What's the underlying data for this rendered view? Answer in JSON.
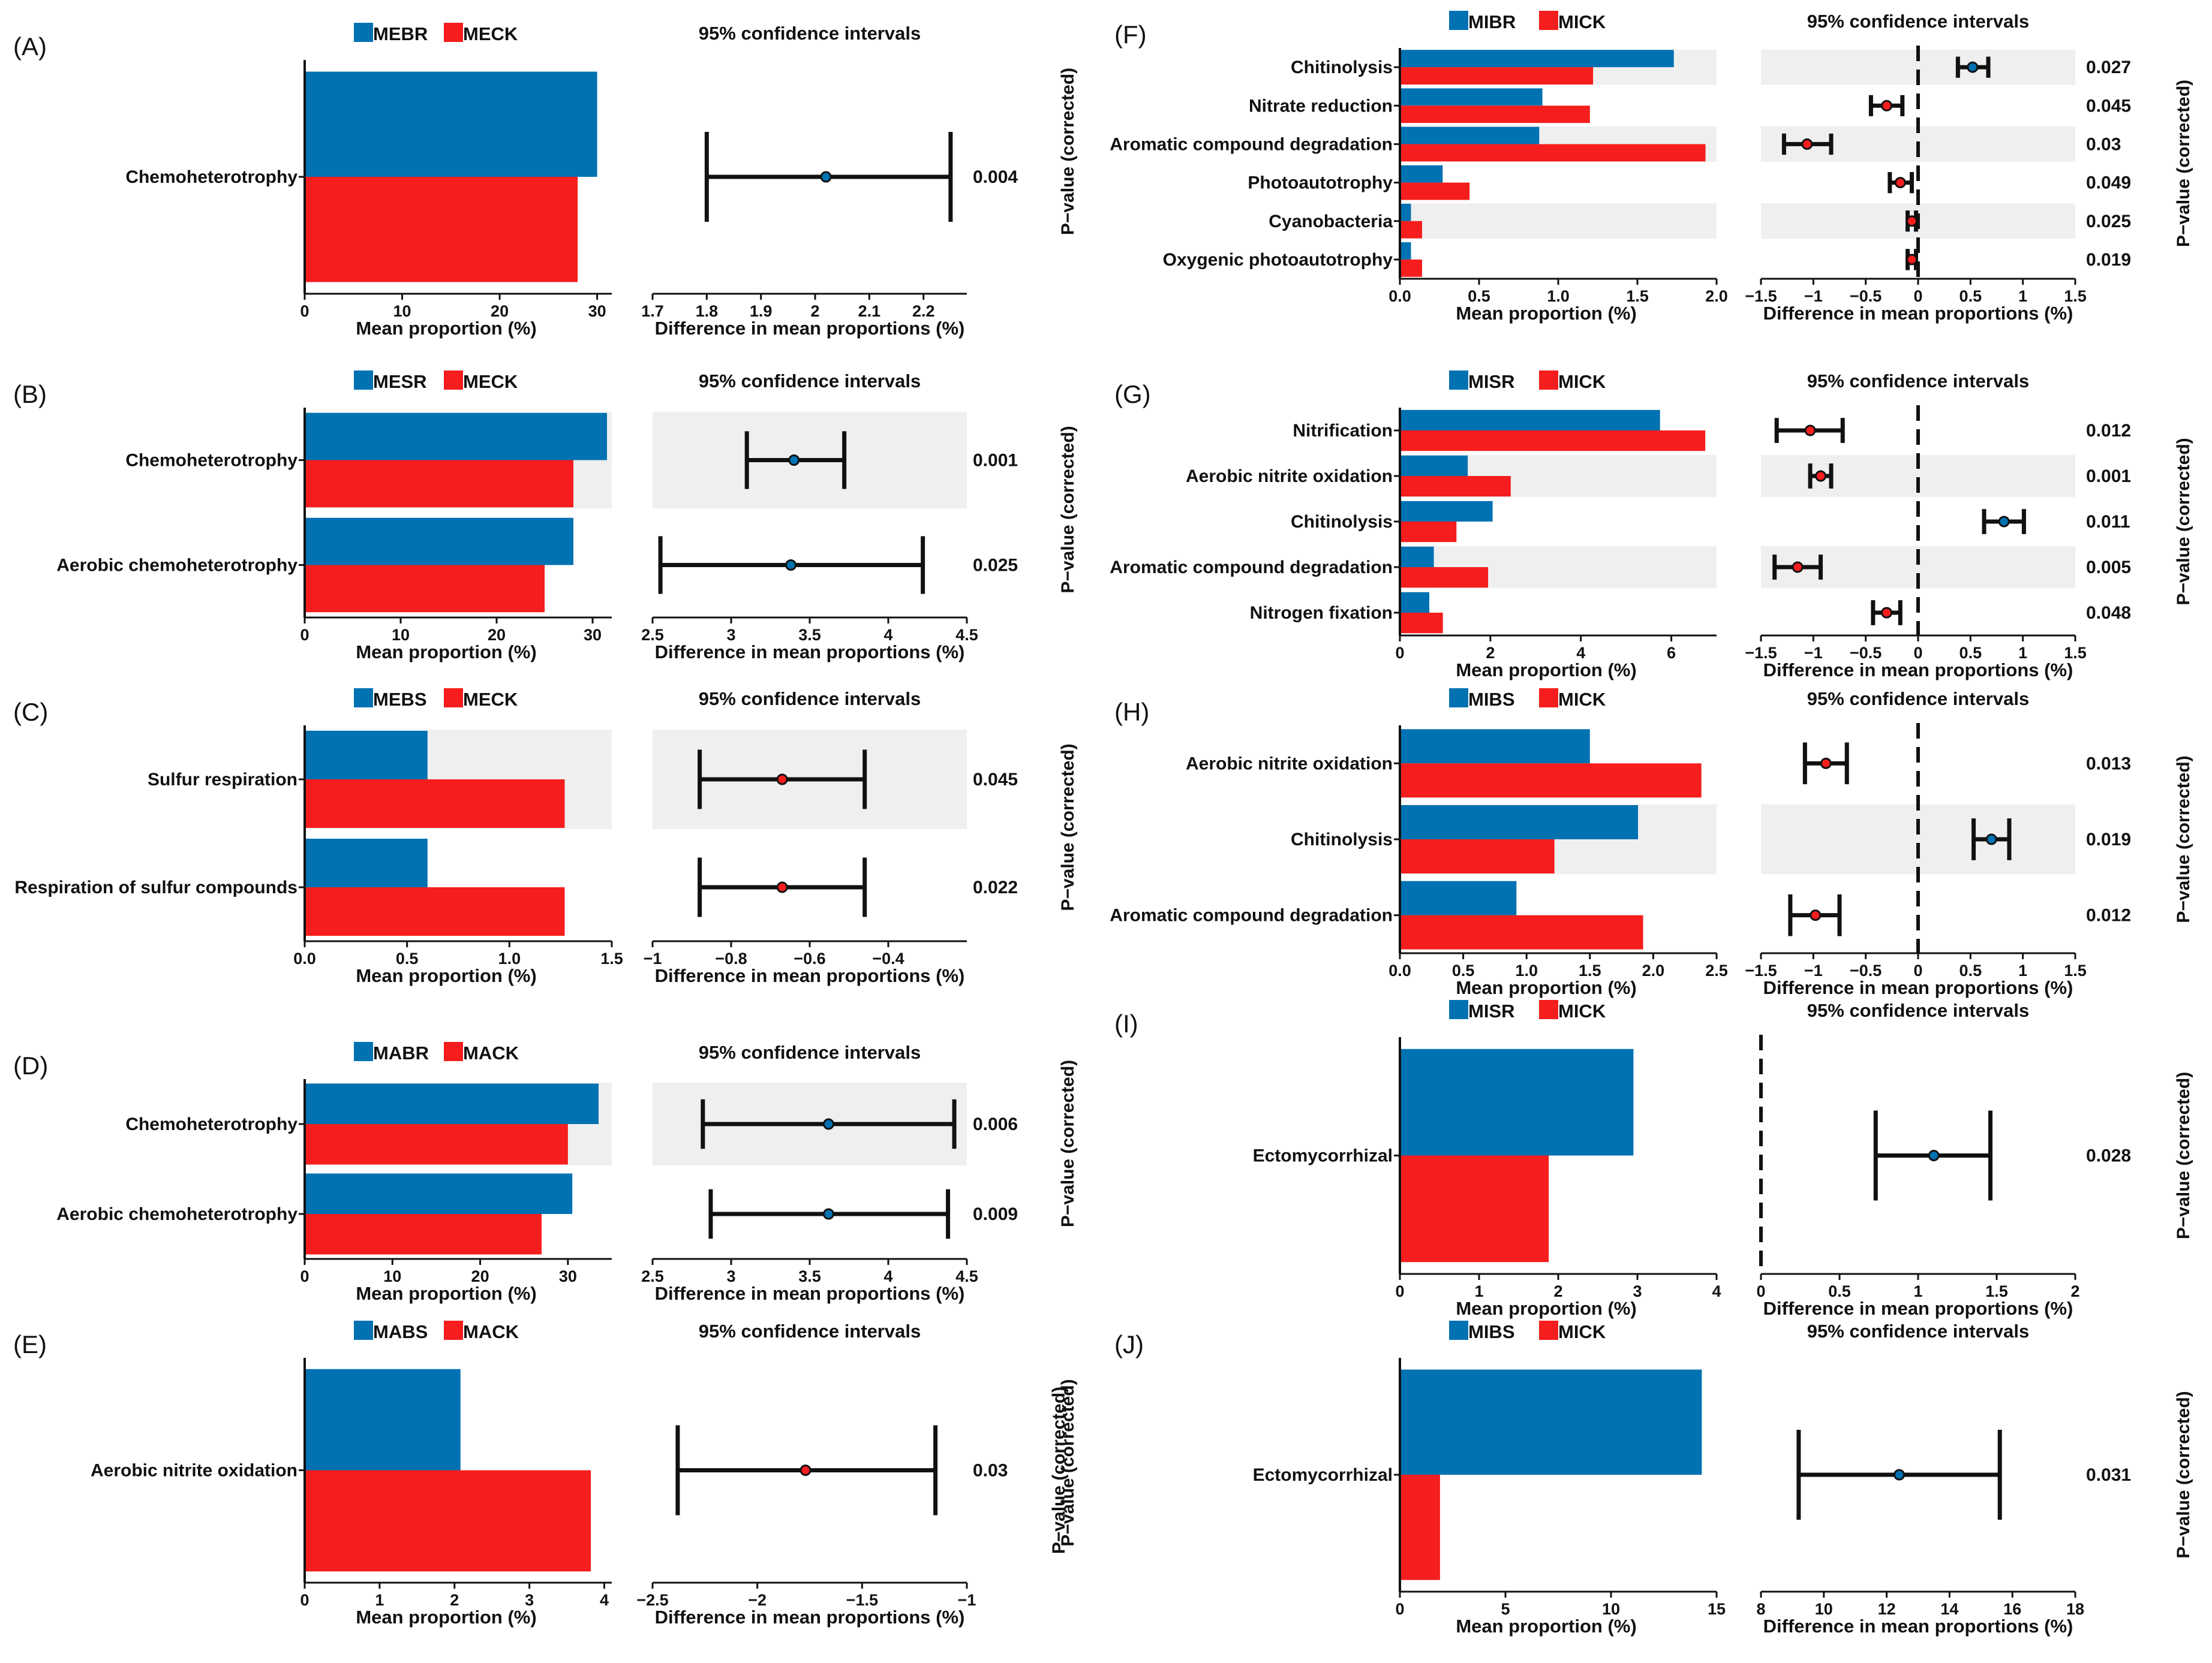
{
  "colors": {
    "group1": "#0072b2",
    "group2": "#f51d1d",
    "stripe": "#efefef",
    "axis": "#111111",
    "ci": "#111111"
  },
  "chart_data": [
    {
      "id": "A",
      "type": "bar",
      "panel_label": "(A)",
      "legend": [
        "MEBR",
        "MECK"
      ],
      "categories": [
        "Chemoheterotrophy"
      ],
      "series": [
        {
          "name": "MEBR",
          "values": [
            30.0
          ]
        },
        {
          "name": "MECK",
          "values": [
            28.0
          ]
        }
      ],
      "xlim": [
        0,
        31.5
      ],
      "xticks": [
        0,
        10,
        20,
        30
      ],
      "xlabel": "Mean proportion (%)",
      "ci_title": "95% confidence intervals",
      "ci": [
        {
          "estimate": 2.02,
          "low": 1.8,
          "high": 2.25
        }
      ],
      "ci_xlim": [
        1.7,
        2.28
      ],
      "ci_xticks": [
        1.7,
        1.8,
        1.9,
        2.0,
        2.1,
        2.2
      ],
      "ci_zero_line": false,
      "ci_xlabel": "Difference in mean proportions (%)",
      "pvalues": [
        "0.004"
      ],
      "pvalue_axis_label": "",
      "stripes": []
    },
    {
      "id": "B",
      "type": "bar",
      "panel_label": "(B)",
      "legend": [
        "MESR",
        "MECK"
      ],
      "categories": [
        "Chemoheterotrophy",
        "Aerobic chemoheterotrophy"
      ],
      "series": [
        {
          "name": "MESR",
          "values": [
            31.5,
            28.0
          ]
        },
        {
          "name": "MECK",
          "values": [
            28.0,
            25.0
          ]
        }
      ],
      "xlim": [
        0,
        32
      ],
      "xticks": [
        0,
        10,
        20,
        30
      ],
      "xlabel": "Mean proportion (%)",
      "ci_title": "95% confidence intervals",
      "ci": [
        {
          "estimate": 3.4,
          "low": 3.1,
          "high": 3.72
        },
        {
          "estimate": 3.38,
          "low": 2.55,
          "high": 4.22
        }
      ],
      "ci_xlim": [
        2.5,
        4.5
      ],
      "ci_xticks": [
        2.5,
        3.0,
        3.5,
        4.0,
        4.5
      ],
      "ci_zero_line": false,
      "ci_xlabel": "Difference in mean proportions (%)",
      "pvalues": [
        "0.001",
        "0.025"
      ],
      "pvalue_axis_label": "",
      "stripes": [
        0
      ]
    },
    {
      "id": "C",
      "type": "bar",
      "panel_label": "(C)",
      "legend": [
        "MEBS",
        "MECK"
      ],
      "categories": [
        "Sulfur respiration",
        "Respiration of sulfur compounds"
      ],
      "series": [
        {
          "name": "MEBS",
          "values": [
            0.6,
            0.6
          ]
        },
        {
          "name": "MECK",
          "values": [
            1.27,
            1.27
          ]
        }
      ],
      "xlim": [
        0,
        1.5
      ],
      "xticks": [
        0.0,
        0.5,
        1.0,
        1.5
      ],
      "xlabel": "Mean proportion (%)",
      "ci_title": "95% confidence intervals",
      "ci": [
        {
          "estimate": -0.67,
          "low": -0.88,
          "high": -0.46
        },
        {
          "estimate": -0.67,
          "low": -0.88,
          "high": -0.46
        }
      ],
      "ci_xlim": [
        -1.0,
        -0.2
      ],
      "ci_xticks": [
        -1.0,
        -0.8,
        -0.6,
        -0.4
      ],
      "ci_zero_line": false,
      "ci_xlabel": "Difference in mean proportions (%)",
      "pvalues": [
        "0.045",
        "0.022"
      ],
      "pvalue_axis_label": "",
      "stripes": [
        0
      ]
    },
    {
      "id": "D",
      "type": "bar",
      "panel_label": "(D)",
      "legend": [
        "MABR",
        "MACK"
      ],
      "categories": [
        "Chemoheterotrophy",
        "Aerobic chemoheterotrophy"
      ],
      "series": [
        {
          "name": "MABR",
          "values": [
            33.5,
            30.5
          ]
        },
        {
          "name": "MACK",
          "values": [
            30.0,
            27.0
          ]
        }
      ],
      "xlim": [
        0,
        35
      ],
      "xticks": [
        0,
        10,
        20,
        30
      ],
      "xlabel": "Mean proportion (%)",
      "ci_title": "95% confidence intervals",
      "ci": [
        {
          "estimate": 3.62,
          "low": 2.82,
          "high": 4.42
        },
        {
          "estimate": 3.62,
          "low": 2.87,
          "high": 4.38
        }
      ],
      "ci_xlim": [
        2.5,
        4.5
      ],
      "ci_xticks": [
        2.5,
        3.0,
        3.5,
        4.0,
        4.5
      ],
      "ci_zero_line": false,
      "ci_xlabel": "Difference in mean proportions (%)",
      "pvalues": [
        "0.006",
        "0.009"
      ],
      "pvalue_axis_label": "",
      "stripes": [
        0
      ]
    },
    {
      "id": "E",
      "type": "bar",
      "panel_label": "(E)",
      "legend": [
        "MABS",
        "MACK"
      ],
      "categories": [
        "Aerobic nitrite oxidation"
      ],
      "series": [
        {
          "name": "MABS",
          "values": [
            2.08
          ]
        },
        {
          "name": "MACK",
          "values": [
            3.82
          ]
        }
      ],
      "xlim": [
        0,
        4.1
      ],
      "xticks": [
        0,
        1,
        2,
        3,
        4
      ],
      "xlabel": "Mean proportion (%)",
      "ci_title": "95% confidence intervals",
      "ci": [
        {
          "estimate": -1.77,
          "low": -2.38,
          "high": -1.15
        }
      ],
      "ci_xlim": [
        -2.5,
        -1.0
      ],
      "ci_xticks": [
        -2.5,
        -2.0,
        -1.5,
        -1.0
      ],
      "ci_zero_line": false,
      "ci_xlabel": "Difference in mean proportions (%)",
      "pvalues": [
        "0.03"
      ],
      "pvalue_axis_label": "P−value (corrected)",
      "stripes": []
    },
    {
      "id": "F",
      "type": "bar",
      "panel_label": "(F)",
      "legend": [
        "MIBR",
        "MICK"
      ],
      "categories": [
        "Chitinolysis",
        "Nitrate reduction",
        "Aromatic compound degradation",
        "Photoautotrophy",
        "Cyanobacteria",
        "Oxygenic photoautotrophy"
      ],
      "series": [
        {
          "name": "MIBR",
          "values": [
            1.73,
            0.9,
            0.88,
            0.27,
            0.07,
            0.07
          ]
        },
        {
          "name": "MICK",
          "values": [
            1.22,
            1.2,
            1.93,
            0.44,
            0.14,
            0.14
          ]
        }
      ],
      "xlim": [
        0,
        2.0
      ],
      "xticks": [
        0.0,
        0.5,
        1.0,
        1.5,
        2.0
      ],
      "xlabel": "Mean proportion (%)",
      "ci_title": "95% confidence intervals",
      "ci": [
        {
          "estimate": 0.52,
          "low": 0.38,
          "high": 0.67
        },
        {
          "estimate": -0.3,
          "low": -0.45,
          "high": -0.15
        },
        {
          "estimate": -1.06,
          "low": -1.28,
          "high": -0.83
        },
        {
          "estimate": -0.17,
          "low": -0.27,
          "high": -0.06
        },
        {
          "estimate": -0.06,
          "low": -0.1,
          "high": -0.02
        },
        {
          "estimate": -0.06,
          "low": -0.1,
          "high": -0.02
        }
      ],
      "ci_xlim": [
        -1.5,
        1.5
      ],
      "ci_xticks": [
        -1.5,
        -1.0,
        -0.5,
        0.0,
        0.5,
        1.0,
        1.5
      ],
      "ci_zero_line": true,
      "ci_xlabel": "Difference in mean proportions (%)",
      "pvalues": [
        "0.027",
        "0.045",
        "0.03",
        "0.049",
        "0.025",
        "0.019"
      ],
      "pvalue_axis_label": "P−value (corrected)",
      "stripes": [
        0,
        2,
        4
      ]
    },
    {
      "id": "G",
      "type": "bar",
      "panel_label": "(G)",
      "legend": [
        "MISR",
        "MICK"
      ],
      "categories": [
        "Nitrification",
        "Aerobic nitrite oxidation",
        "Chitinolysis",
        "Aromatic compound degradation",
        "Nitrogen fixation"
      ],
      "series": [
        {
          "name": "MISR",
          "values": [
            5.75,
            1.5,
            2.05,
            0.75,
            0.65
          ]
        },
        {
          "name": "MICK",
          "values": [
            6.75,
            2.45,
            1.25,
            1.95,
            0.95
          ]
        }
      ],
      "xlim": [
        0,
        7.0
      ],
      "xticks": [
        0,
        2,
        4,
        6
      ],
      "xlabel": "Mean proportion (%)",
      "ci_title": "95% confidence intervals",
      "ci": [
        {
          "estimate": -1.03,
          "low": -1.35,
          "high": -0.72
        },
        {
          "estimate": -0.93,
          "low": -1.03,
          "high": -0.83
        },
        {
          "estimate": 0.82,
          "low": 0.63,
          "high": 1.01
        },
        {
          "estimate": -1.15,
          "low": -1.37,
          "high": -0.93
        },
        {
          "estimate": -0.3,
          "low": -0.43,
          "high": -0.17
        }
      ],
      "ci_xlim": [
        -1.5,
        1.5
      ],
      "ci_xticks": [
        -1.5,
        -1.0,
        -0.5,
        0.0,
        0.5,
        1.0,
        1.5
      ],
      "ci_zero_line": true,
      "ci_xlabel": "Difference in mean proportions (%)",
      "pvalues": [
        "0.012",
        "0.001",
        "0.011",
        "0.005",
        "0.048"
      ],
      "pvalue_axis_label": "P−value (corrected)",
      "stripes": [
        1,
        3
      ]
    },
    {
      "id": "H",
      "type": "bar",
      "panel_label": "(H)",
      "legend": [
        "MIBS",
        "MICK"
      ],
      "categories": [
        "Aerobic nitrite oxidation",
        "Chitinolysis",
        "Aromatic compound degradation"
      ],
      "series": [
        {
          "name": "MIBS",
          "values": [
            1.5,
            1.88,
            0.92
          ]
        },
        {
          "name": "MICK",
          "values": [
            2.38,
            1.22,
            1.92
          ]
        }
      ],
      "xlim": [
        0,
        2.5
      ],
      "xticks": [
        0.0,
        0.5,
        1.0,
        1.5,
        2.0,
        2.5
      ],
      "xlabel": "Mean proportion (%)",
      "ci_title": "95% confidence intervals",
      "ci": [
        {
          "estimate": -0.88,
          "low": -1.08,
          "high": -0.68
        },
        {
          "estimate": 0.7,
          "low": 0.53,
          "high": 0.87
        },
        {
          "estimate": -0.98,
          "low": -1.22,
          "high": -0.75
        }
      ],
      "ci_xlim": [
        -1.5,
        1.5
      ],
      "ci_xticks": [
        -1.5,
        -1.0,
        -0.5,
        0.0,
        0.5,
        1.0,
        1.5
      ],
      "ci_zero_line": true,
      "ci_xlabel": "Difference in mean proportions (%)",
      "pvalues": [
        "0.013",
        "0.019",
        "0.012"
      ],
      "pvalue_axis_label": "P−value (corrected)",
      "stripes": [
        1
      ]
    },
    {
      "id": "I",
      "type": "bar",
      "panel_label": "(I)",
      "legend": [
        "MISR",
        "MICK"
      ],
      "categories": [
        "Ectomycorrhizal"
      ],
      "series": [
        {
          "name": "MISR",
          "values": [
            2.95
          ]
        },
        {
          "name": "MICK",
          "values": [
            1.88
          ]
        }
      ],
      "xlim": [
        0,
        4.0
      ],
      "xticks": [
        0,
        1,
        2,
        3,
        4
      ],
      "xlabel": "Mean proportion (%)",
      "ci_title": "95% confidence intervals",
      "ci": [
        {
          "estimate": 1.1,
          "low": 0.73,
          "high": 1.46
        }
      ],
      "ci_xlim": [
        0.0,
        2.0
      ],
      "ci_xticks": [
        0.0,
        0.5,
        1.0,
        1.5,
        2.0
      ],
      "ci_zero_line": true,
      "ci_xlabel": "Difference in mean proportions (%)",
      "pvalues": [
        "0.028"
      ],
      "pvalue_axis_label": "P−value (corrected)",
      "stripes": []
    },
    {
      "id": "J",
      "type": "bar",
      "panel_label": "(J)",
      "legend": [
        "MIBS",
        "MICK"
      ],
      "categories": [
        "Ectomycorrhizal"
      ],
      "series": [
        {
          "name": "MIBS",
          "values": [
            14.3
          ]
        },
        {
          "name": "MICK",
          "values": [
            1.9
          ]
        }
      ],
      "xlim": [
        0,
        15.0
      ],
      "xticks": [
        0,
        5,
        10,
        15
      ],
      "xlabel": "Mean proportion (%)",
      "ci_title": "95% confidence intervals",
      "ci": [
        {
          "estimate": 12.4,
          "low": 9.2,
          "high": 15.6
        }
      ],
      "ci_xlim": [
        8,
        18
      ],
      "ci_xticks": [
        8,
        10,
        12,
        14,
        16,
        18
      ],
      "ci_zero_line": false,
      "ci_xlabel": "Difference in mean proportions (%)",
      "pvalues": [
        "0.031"
      ],
      "pvalue_axis_label": "P−value (corrected)",
      "stripes": []
    }
  ]
}
